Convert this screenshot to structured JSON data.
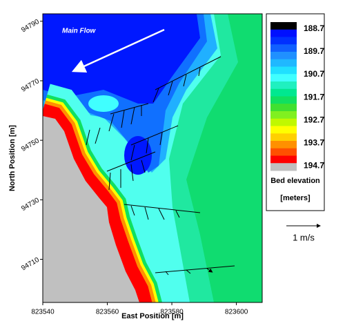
{
  "chart_data": {
    "type": "contour",
    "x_label": "East Position [m]",
    "y_label": "North Position [m]",
    "xlim": [
      823540,
      823608
    ],
    "xticks": [
      823540,
      823560,
      823580,
      823600
    ],
    "ylim": [
      94695.5,
      94792.5
    ],
    "yticks": [
      94710,
      94730,
      94750,
      94770,
      94790
    ],
    "annotation": "Main Flow",
    "scale_label": "1 m/s",
    "colorbar": {
      "title": "Bed elevation",
      "units": "[meters]",
      "clim": [
        188.4,
        194.9
      ],
      "ticks": [
        188.7,
        189.7,
        190.7,
        191.7,
        192.7,
        193.7,
        194.7
      ],
      "colors": [
        "#000000",
        "#0010ff",
        "#0030ff",
        "#1060ff",
        "#2090ff",
        "#20b8ff",
        "#20e0ff",
        "#40ffff",
        "#20f0c0",
        "#00e890",
        "#10e060",
        "#40e030",
        "#80f020",
        "#c0f800",
        "#ffff00",
        "#ffd000",
        "#ff9000",
        "#ff5000",
        "#ff0000",
        "#c0c0c0"
      ]
    }
  }
}
